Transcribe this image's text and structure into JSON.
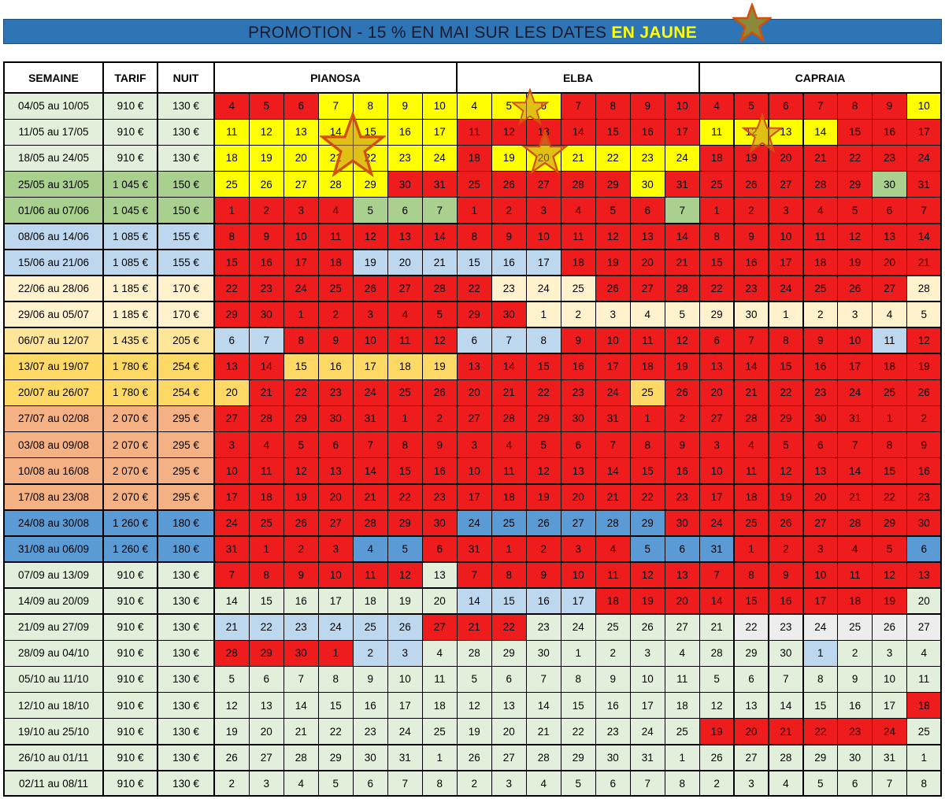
{
  "banner": {
    "text_before": "PROMOTION - 15 % EN MAI SUR LES DATES ",
    "text_highlight": "EN JAUNE",
    "star_icon": "star-icon"
  },
  "headers": {
    "week": "SEMAINE",
    "rate": "TARIF",
    "night": "NUIT",
    "islands": [
      "PIANOSA",
      "ELBA",
      "CAPRAIA"
    ]
  },
  "colors": {
    "R": "#ee1c1c",
    "Y": "#ffff00",
    "G": "#a9d08e",
    "LB": "#bdd7ee",
    "CR": "#fff2cc",
    "LY": "#ffe699",
    "O": "#ffd966",
    "S": "#f4b183",
    "B": "#5b9bd5",
    "W": "#e2efda",
    "GR": "#ededed",
    "week_col": "#e2efda"
  },
  "rows": [
    {
      "week": "04/05 au 10/05",
      "tarif": "910 €",
      "nuit": "130 €",
      "cls": "W",
      "days": [
        4,
        5,
        6,
        7,
        8,
        9,
        10
      ],
      "p": "RRRYYYY",
      "e": "YYYRRRR",
      "c": "RRRRRRY"
    },
    {
      "week": "11/05 au 17/05",
      "tarif": "910 €",
      "nuit": "130 €",
      "cls": "W",
      "days": [
        11,
        12,
        13,
        14,
        15,
        16,
        17
      ],
      "p": "YYYYYYY",
      "e": "RRRRRRR",
      "c": "YYYYRRR"
    },
    {
      "week": "18/05 au 24/05",
      "tarif": "910 €",
      "nuit": "130 €",
      "cls": "W",
      "days": [
        18,
        19,
        20,
        21,
        22,
        23,
        24
      ],
      "p": "YYYYYYY",
      "e": "RYYYYYY",
      "c": "RRRRRRR"
    },
    {
      "week": "25/05 au 31/05",
      "tarif": "1 045 €",
      "nuit": "150 €",
      "cls": "G",
      "days": [
        25,
        26,
        27,
        28,
        29,
        30,
        31
      ],
      "p": "YYYYYRR",
      "e": "RRRRRYR",
      "c": "RRRRRGR"
    },
    {
      "week": "01/06 au 07/06",
      "tarif": "1 045 €",
      "nuit": "150 €",
      "cls": "G",
      "days": [
        1,
        2,
        3,
        4,
        5,
        6,
        7
      ],
      "p": "RRRRGGG",
      "e": "RRRRRRG",
      "c": "RRRRRRR"
    },
    {
      "week": "08/06 au 14/06",
      "tarif": "1 085 €",
      "nuit": "155 €",
      "cls": "LB",
      "days": [
        8,
        9,
        10,
        11,
        12,
        13,
        14
      ],
      "p": "RRRRRRR",
      "e": "RRRRRRR",
      "c": "RRRRRRR"
    },
    {
      "week": "15/06 au 21/06",
      "tarif": "1 085 €",
      "nuit": "155 €",
      "cls": "LB",
      "days": [
        15,
        16,
        17,
        18,
        19,
        20,
        21
      ],
      "p": "RRRRLLL",
      "e": "LLLRRRR",
      "c": "RRRRRRR"
    },
    {
      "week": "22/06 au 28/06",
      "tarif": "1 185 €",
      "nuit": "170 €",
      "cls": "CR",
      "days": [
        22,
        23,
        24,
        25,
        26,
        27,
        28
      ],
      "p": "RRRRRRR",
      "e": "RCCCRRR",
      "c": "RRRRRRC"
    },
    {
      "week": "29/06 au 05/07",
      "tarif": "1 185 €",
      "nuit": "170 €",
      "cls": "CR",
      "days": [
        29,
        30,
        1,
        2,
        3,
        4,
        5
      ],
      "p": "RRRRRRR",
      "e": "RRCCCCC",
      "c": "CCCCCCC"
    },
    {
      "week": "06/07 au 12/07",
      "tarif": "1 435 €",
      "nuit": "205 €",
      "cls": "LY",
      "days": [
        6,
        7,
        8,
        9,
        10,
        11,
        12
      ],
      "p": "LLRRRRR",
      "e": "LLLRRRR",
      "c": "RRRRRLR"
    },
    {
      "week": "13/07 au 19/07",
      "tarif": "1 780 €",
      "nuit": "254 €",
      "cls": "O",
      "days": [
        13,
        14,
        15,
        16,
        17,
        18,
        19
      ],
      "p": "RROOOOO",
      "e": "RRRRRRR",
      "c": "RRRRRRR"
    },
    {
      "week": "20/07 au 26/07",
      "tarif": "1 780 €",
      "nuit": "254 €",
      "cls": "O",
      "days": [
        20,
        21,
        22,
        23,
        24,
        25,
        26
      ],
      "p": "ORRRRRR",
      "e": "RRRRROR",
      "c": "RRRRRRR"
    },
    {
      "week": "27/07 au 02/08",
      "tarif": "2 070 €",
      "nuit": "295 €",
      "cls": "S",
      "days": [
        27,
        28,
        29,
        30,
        31,
        1,
        2
      ],
      "p": "RRRRRRR",
      "e": "RRRRRRR",
      "c": "RRRRRRR"
    },
    {
      "week": "03/08 au 09/08",
      "tarif": "2 070 €",
      "nuit": "295 €",
      "cls": "S",
      "days": [
        3,
        4,
        5,
        6,
        7,
        8,
        9
      ],
      "p": "RRRRRRR",
      "e": "RRRRRRR",
      "c": "RRRRRRR"
    },
    {
      "week": "10/08 au 16/08",
      "tarif": "2 070 €",
      "nuit": "295 €",
      "cls": "S",
      "days": [
        10,
        11,
        12,
        13,
        14,
        15,
        16
      ],
      "p": "RRRRRRR",
      "e": "RRRRRRR",
      "c": "RRRRRRR"
    },
    {
      "week": "17/08 au 23/08",
      "tarif": "2 070 €",
      "nuit": "295 €",
      "cls": "S",
      "days": [
        17,
        18,
        19,
        20,
        21,
        22,
        23
      ],
      "p": "RRRRRRR",
      "e": "RRRRRRR",
      "c": "RRRRRRR"
    },
    {
      "week": "24/08 au 30/08",
      "tarif": "1 260 €",
      "nuit": "180 €",
      "cls": "B",
      "days": [
        24,
        25,
        26,
        27,
        28,
        29,
        30
      ],
      "p": "RRRRRRR",
      "e": "BBBBBBR",
      "c": "RRRRRRR"
    },
    {
      "week": "31/08 au 06/09",
      "tarif": "1 260 €",
      "nuit": "180 €",
      "cls": "B",
      "days": [
        31,
        1,
        2,
        3,
        4,
        5,
        6
      ],
      "p": "RRRRBBR",
      "e": "RRRRRBB",
      "c": "BRRRRRB"
    },
    {
      "week": "07/09 au 13/09",
      "tarif": "910 €",
      "nuit": "130 €",
      "cls": "W",
      "days": [
        7,
        8,
        9,
        10,
        11,
        12,
        13
      ],
      "p": "RRRRRRW",
      "e": "RRRRRRR",
      "c": "RRRRRRR"
    },
    {
      "week": "14/09 au 20/09",
      "tarif": "910 €",
      "nuit": "130 €",
      "cls": "W",
      "days": [
        14,
        15,
        16,
        17,
        18,
        19,
        20
      ],
      "p": "WWWWWWW",
      "e": "LLLLRRR",
      "c": "RRRRRRW"
    },
    {
      "week": "21/09 au 27/09",
      "tarif": "910 €",
      "nuit": "130 €",
      "cls": "W",
      "days": [
        21,
        22,
        23,
        24,
        25,
        26,
        27
      ],
      "p": "LLLLLLR",
      "e": "RRWWWWW",
      "c": "WGGGGGG"
    },
    {
      "week": "28/09 au 04/10",
      "tarif": "910 €",
      "nuit": "130 €",
      "cls": "W",
      "days": [
        28,
        29,
        30,
        1,
        2,
        3,
        4
      ],
      "p": "RRRRLLW",
      "e": "WWWWWWW",
      "c": "WWWLWWW"
    },
    {
      "week": "05/10 au 11/10",
      "tarif": "910 €",
      "nuit": "130 €",
      "cls": "W",
      "days": [
        5,
        6,
        7,
        8,
        9,
        10,
        11
      ],
      "p": "WWWWWWW",
      "e": "WWWWWWW",
      "c": "WWWWWWW"
    },
    {
      "week": "12/10 au 18/10",
      "tarif": "910 €",
      "nuit": "130 €",
      "cls": "W",
      "days": [
        12,
        13,
        14,
        15,
        16,
        17,
        18
      ],
      "p": "WWWWWWW",
      "e": "WWWWWWW",
      "c": "WWWWWWR"
    },
    {
      "week": "19/10 au 25/10",
      "tarif": "910 €",
      "nuit": "130 €",
      "cls": "W",
      "days": [
        19,
        20,
        21,
        22,
        23,
        24,
        25
      ],
      "p": "WWWWWWW",
      "e": "WWWWWWW",
      "c": "RRRRRRW"
    },
    {
      "week": "26/10 au 01/11",
      "tarif": "910 €",
      "nuit": "130 €",
      "cls": "W",
      "days": [
        26,
        27,
        28,
        29,
        30,
        31,
        1
      ],
      "p": "WWWWWWW",
      "e": "WWWWWWW",
      "c": "WWWWWWW"
    },
    {
      "week": "02/11 au 08/11",
      "tarif": "910 €",
      "nuit": "130 €",
      "cls": "W",
      "days": [
        2,
        3,
        4,
        5,
        6,
        7,
        8
      ],
      "p": "WWWWWWW",
      "e": "WWWWWWW",
      "c": "WWWWWWW"
    }
  ]
}
